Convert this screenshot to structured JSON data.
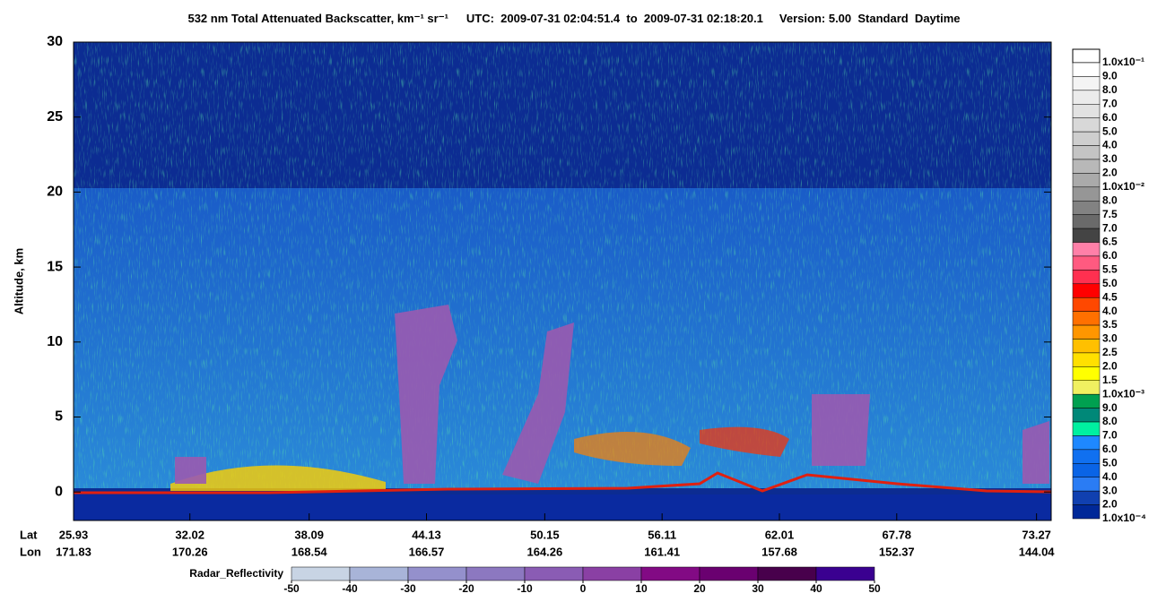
{
  "chart_data": {
    "type": "curtain",
    "title": "532 nm Total Attenuated Backscatter, km⁻¹ sr⁻¹",
    "subtitle": "UTC:  2009-07-31 02:04:51.4  to  2009-07-31 02:18:20.1     Version: 5.00  Standard  Daytime",
    "y_label": "Altitude, km",
    "ylim": [
      -1.9,
      30
    ],
    "yticks": [
      0,
      5,
      10,
      15,
      20,
      25,
      30
    ],
    "x_row_labels": [
      "Lat",
      "Lon"
    ],
    "lat": [
      25.93,
      32.02,
      38.09,
      44.13,
      50.15,
      56.11,
      62.01,
      67.78,
      73.27
    ],
    "lon": [
      171.83,
      170.26,
      168.54,
      166.57,
      164.26,
      161.41,
      157.68,
      152.37,
      144.04
    ],
    "backscatter_scale": {
      "labels": [
        "1.0x10⁻¹",
        "9.0",
        "8.0",
        "7.0",
        "6.0",
        "5.0",
        "4.0",
        "3.0",
        "2.0",
        "1.0x10⁻²",
        "8.0",
        "7.5",
        "7.0",
        "6.5",
        "6.0",
        "5.5",
        "5.0",
        "4.5",
        "4.0",
        "3.5",
        "3.0",
        "2.5",
        "2.0",
        "1.5",
        "1.0x10⁻³",
        "9.0",
        "8.0",
        "7.0",
        "6.0",
        "5.0",
        "4.0",
        "3.0",
        "2.0",
        "1.0x10⁻⁴"
      ],
      "colors": [
        "#ffffff",
        "#f4f4f4",
        "#ebebeb",
        "#e2e2e2",
        "#d8d8d8",
        "#cecece",
        "#c4c4c4",
        "#b8b8b8",
        "#aaaaaa",
        "#969696",
        "#828282",
        "#6a6a6a",
        "#444444",
        "#ff80a8",
        "#ff5a80",
        "#ff3050",
        "#ff0000",
        "#ff4800",
        "#ff7000",
        "#ff9600",
        "#ffc000",
        "#ffe000",
        "#ffff00",
        "#f0f060",
        "#00a050",
        "#008878",
        "#00f0a0",
        "#1e88ff",
        "#1070f0",
        "#0a64e6",
        "#2a7cf4",
        "#1040b0",
        "#002898"
      ]
    },
    "reflectivity_scale": {
      "label": "Radar_Reflectivity",
      "ticks": [
        -50,
        -40,
        -30,
        -20,
        -10,
        0,
        10,
        20,
        30,
        40,
        50
      ],
      "colors": [
        "#c8d4e4",
        "#a8b4d8",
        "#9490cc",
        "#8c78c0",
        "#8a5cb4",
        "#8a40a4",
        "#820a84",
        "#6a0070",
        "#48004c",
        "#3a0090"
      ]
    }
  }
}
